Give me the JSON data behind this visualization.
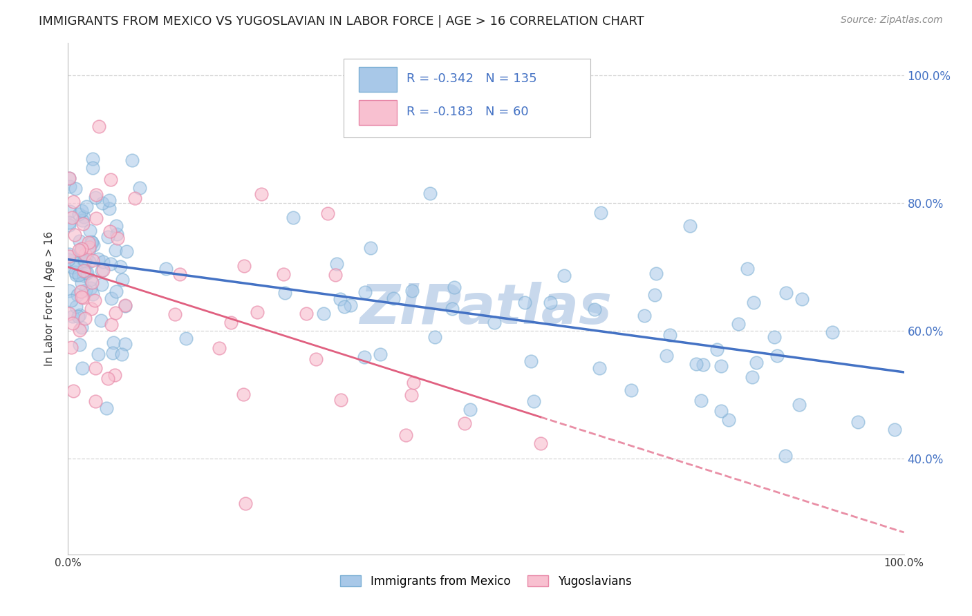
{
  "title": "IMMIGRANTS FROM MEXICO VS YUGOSLAVIAN IN LABOR FORCE | AGE > 16 CORRELATION CHART",
  "source": "Source: ZipAtlas.com",
  "ylabel": "In Labor Force | Age > 16",
  "xlim": [
    0.0,
    1.0
  ],
  "ylim": [
    0.25,
    1.05
  ],
  "yticks": [
    0.4,
    0.6,
    0.8,
    1.0
  ],
  "ytick_labels": [
    "40.0%",
    "60.0%",
    "80.0%",
    "100.0%"
  ],
  "xticks": [
    0.0,
    0.2,
    0.4,
    0.6,
    0.8,
    1.0
  ],
  "xtick_labels": [
    "0.0%",
    "",
    "",
    "",
    "",
    "100.0%"
  ],
  "mexico_color": "#a8c8e8",
  "mexico_edge_color": "#7bafd4",
  "yugoslavian_color": "#f8c0d0",
  "yugoslavian_edge_color": "#e888a8",
  "mexico_R": -0.342,
  "mexico_N": 135,
  "yugoslavian_R": -0.183,
  "yugoslavian_N": 60,
  "background_color": "#ffffff",
  "grid_color": "#cccccc",
  "watermark_text": "ZIPatlas",
  "watermark_color": "#c8d8ec",
  "title_fontsize": 13,
  "tick_label_color_right": "#4472c4",
  "legend_text_color": "#4472c4",
  "mexico_line_color": "#4472c4",
  "yugoslavian_line_color": "#e06080",
  "source_color": "#888888"
}
